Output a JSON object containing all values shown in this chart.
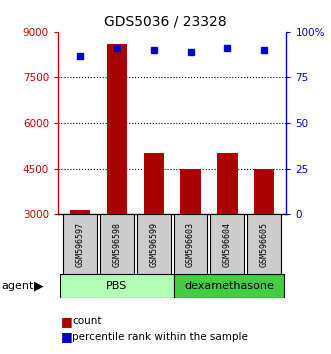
{
  "title": "GDS5036 / 23328",
  "samples": [
    "GSM596597",
    "GSM596598",
    "GSM596599",
    "GSM596603",
    "GSM596604",
    "GSM596605"
  ],
  "counts": [
    3150,
    8600,
    5000,
    4500,
    5000,
    4500
  ],
  "percentile_ranks": [
    87,
    91,
    90,
    89,
    91,
    90
  ],
  "group_colors": [
    "#b3ffb3",
    "#44cc44"
  ],
  "bar_color": "#aa0000",
  "dot_color": "#0000cc",
  "left_axis_color": "#cc0000",
  "right_axis_color": "#0000cc",
  "ylim_left": [
    3000,
    9000
  ],
  "ylim_right": [
    0,
    100
  ],
  "yticks_left": [
    3000,
    4500,
    6000,
    7500,
    9000
  ],
  "ytick_labels_left": [
    "3000",
    "4500",
    "6000",
    "7500",
    "9000"
  ],
  "yticks_right": [
    0,
    25,
    50,
    75,
    100
  ],
  "ytick_labels_right": [
    "0",
    "25",
    "50",
    "75",
    "100%"
  ],
  "grid_yticks": [
    7500,
    6000,
    4500
  ],
  "background_color": "#ffffff",
  "agent_label": "agent"
}
